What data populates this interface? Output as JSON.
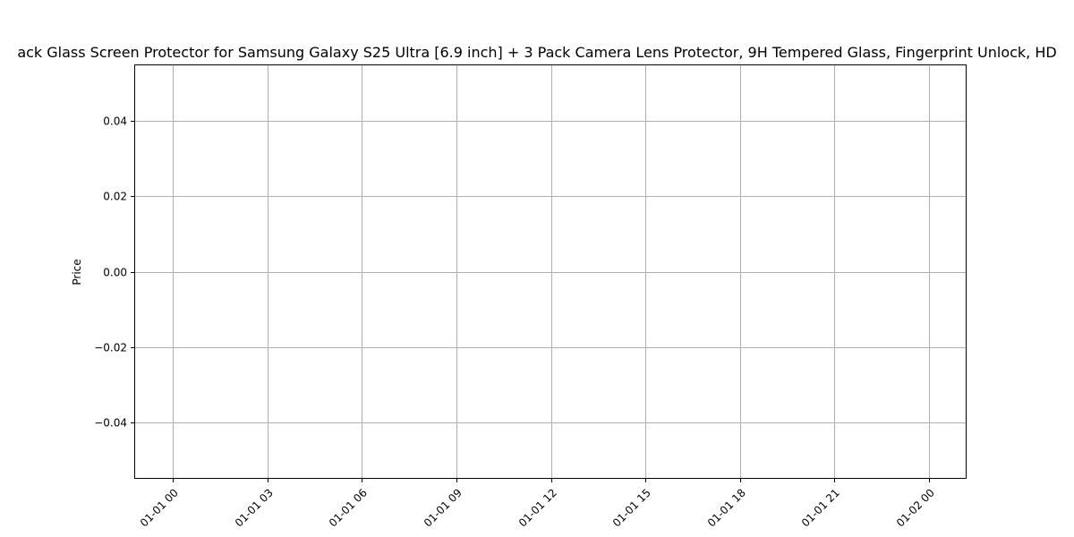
{
  "chart_data": {
    "type": "line",
    "title": "ack Glass Screen Protector for Samsung Galaxy S25 Ultra [6.9 inch] + 3 Pack Camera Lens Protector, 9H Tempered Glass, Fingerprint Unlock, HD",
    "xlabel": "",
    "ylabel": "Price",
    "x_ticks": [
      "01-01 00",
      "01-01 03",
      "01-01 06",
      "01-01 09",
      "01-01 12",
      "01-01 15",
      "01-01 18",
      "01-01 21",
      "01-02 00"
    ],
    "y_ticks": [
      "0.04",
      "0.02",
      "0.00",
      "−0.02",
      "−0.04"
    ],
    "y_tick_values": [
      0.04,
      0.02,
      0.0,
      -0.02,
      -0.04
    ],
    "ylim": [
      -0.055,
      0.055
    ],
    "grid": true,
    "series": [],
    "colors": {
      "grid": "#b0b0b0",
      "axes": "#000000"
    }
  }
}
